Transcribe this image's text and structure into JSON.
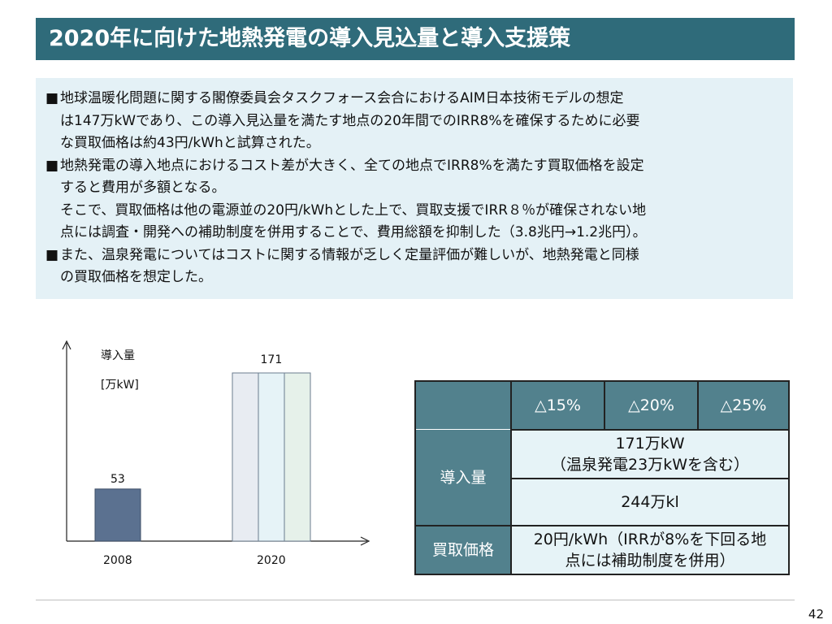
{
  "title": "2020年に向けた地熱発電の導入見込量と導入支援策",
  "bullet_mark": "■",
  "bullets": [
    {
      "lines": [
        "地球温暖化問題に関する閣僚委員会タスクフォース会合におけるAIM日本技術モデルの想定",
        "は147万kWであり、この導入見込量を満たす地点の20年間でのIRR8%を確保するために必要",
        "な買取価格は約43円/kWhと試算された。"
      ]
    },
    {
      "lines": [
        "地熱発電の導入地点におけるコスト差が大きく、全ての地点でIRR8%を満たす買取価格を設定",
        "すると費用が多額となる。",
        "そこで、買取価格は他の電源並の20円/kWhとした上で、買取支援でIRR８％が確保されない地",
        "点には調査・開発への補助制度を併用することで、費用総額を抑制した（3.8兆円→1.2兆円）。"
      ]
    },
    {
      "lines": [
        "また、温泉発電についてはコストに関する情報が乏しく定量評価が難しいが、地熱発電と同様",
        "の買取価格を想定した。"
      ]
    }
  ],
  "chart_data": {
    "type": "bar",
    "ylabel": "導入量",
    "yunit": "[万kW]",
    "categories": [
      "2008",
      "2020"
    ],
    "values": [
      53,
      171
    ],
    "ylim": [
      0,
      190
    ],
    "colors": {
      "bar_2008": "#5b7190",
      "bar_2020": [
        "#e8ecf2",
        "#e6f3f7",
        "#e6f1ea"
      ]
    }
  },
  "table": {
    "headers": [
      "△15%",
      "△20%",
      "△25%"
    ],
    "row1_label": "導入量",
    "row1_a_lines": [
      "171万kW",
      "（温泉発電23万kWを含む）"
    ],
    "row1_b": "244万kl",
    "row2_label": "買取価格",
    "row2_value_lines": [
      "20円/kWh（IRRが8%を下回る地",
      "点には補助制度を併用）"
    ]
  },
  "page_number": "42",
  "colors": {
    "title_bg": "#2f6b7a",
    "box_bg": "#e4f1f6",
    "table_header": "#52818d",
    "table_light": "#e6f3f7"
  }
}
